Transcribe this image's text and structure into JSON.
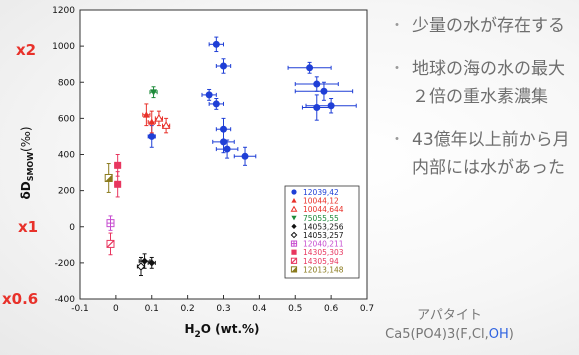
{
  "chart_data": {
    "type": "scatter",
    "xlabel_main": "H",
    "xlabel_sub": "2",
    "xlabel_rest": "O (wt.%)",
    "ylabel_main": "δD",
    "ylabel_sub": "SMOW",
    "ylabel_unit": "(‰)",
    "xlim": [
      -0.1,
      0.7
    ],
    "ylim": [
      -400,
      1200
    ],
    "x_ticks": [
      "-0.1",
      "0",
      "0.1",
      "0.2",
      "0.3",
      "0.4",
      "0.5",
      "0.6",
      "0.7"
    ],
    "y_ticks": [
      "-400",
      "-200",
      "0",
      "200",
      "400",
      "600",
      "800",
      "1000",
      "1200"
    ],
    "grid": false,
    "legend_placement": "inside lower-right",
    "series": [
      {
        "name": "12039,42",
        "color": "#1f3fd6",
        "marker": "circle",
        "points": [
          [
            0.28,
            1010,
            0.02,
            40
          ],
          [
            0.3,
            890,
            0.02,
            40
          ],
          [
            0.26,
            730,
            0.02,
            30
          ],
          [
            0.28,
            680,
            0.02,
            30
          ],
          [
            0.3,
            540,
            0.02,
            60
          ],
          [
            0.3,
            470,
            0.03,
            60
          ],
          [
            0.31,
            430,
            0.03,
            50
          ],
          [
            0.36,
            390,
            0.03,
            50
          ],
          [
            0.1,
            500,
            0.01,
            60
          ],
          [
            0.54,
            880,
            0.06,
            30
          ],
          [
            0.56,
            790,
            0.06,
            40
          ],
          [
            0.58,
            750,
            0.08,
            50
          ],
          [
            0.6,
            670,
            0.07,
            40
          ],
          [
            0.56,
            660,
            0.04,
            70
          ]
        ]
      },
      {
        "name": "10044,12",
        "color": "#e8312a",
        "marker": "triangle",
        "points": [
          [
            0.085,
            620,
            0.01,
            60
          ],
          [
            0.1,
            580,
            0.01,
            60
          ]
        ]
      },
      {
        "name": "10044,644",
        "color": "#e8312a",
        "marker": "triangle-open",
        "points": [
          [
            0.12,
            600,
            0.01,
            40
          ],
          [
            0.14,
            560,
            0.01,
            40
          ]
        ]
      },
      {
        "name": "75055,55",
        "color": "#1d8a3a",
        "marker": "triangle-down",
        "points": [
          [
            0.105,
            745,
            0.01,
            30
          ]
        ]
      },
      {
        "name": "14053,256",
        "color": "#111111",
        "marker": "diamond",
        "points": [
          [
            0.08,
            -190,
            0.015,
            40
          ],
          [
            0.1,
            -200,
            0.01,
            30
          ]
        ]
      },
      {
        "name": "14053,257",
        "color": "#111111",
        "marker": "diamond-open",
        "points": [
          [
            0.07,
            -220,
            0.01,
            50
          ]
        ]
      },
      {
        "name": "12040,211",
        "color": "#c64ccf",
        "marker": "square-cross",
        "points": [
          [
            -0.015,
            20,
            0.005,
            40
          ]
        ]
      },
      {
        "name": "14305,303",
        "color": "#e8365f",
        "marker": "square",
        "points": [
          [
            0.005,
            340,
            0.008,
            60
          ],
          [
            0.005,
            235,
            0.008,
            70
          ]
        ]
      },
      {
        "name": "14305,94",
        "color": "#e8365f",
        "marker": "square-slash",
        "points": [
          [
            -0.015,
            -95,
            0.005,
            60
          ]
        ]
      },
      {
        "name": "12013,148",
        "color": "#8a7a1c",
        "marker": "square-half",
        "points": [
          [
            -0.02,
            270,
            0.005,
            80
          ]
        ]
      }
    ]
  },
  "factor_labels": {
    "x2": "x2",
    "x1": "x1",
    "x06": "x0.6"
  },
  "bullets": [
    {
      "dot": "・",
      "text": "少量の水が存在する"
    },
    {
      "dot": "・",
      "text": "地球の海の水の最大２倍の重水素濃集"
    },
    {
      "dot": "・",
      "text": "43億年以上前から月内部には水があった"
    }
  ],
  "apatite": {
    "name": "アパタイト",
    "formula_main": "Ca5(PO4)3(F,Cl,",
    "formula_oh": "OH",
    "formula_end": ")"
  }
}
